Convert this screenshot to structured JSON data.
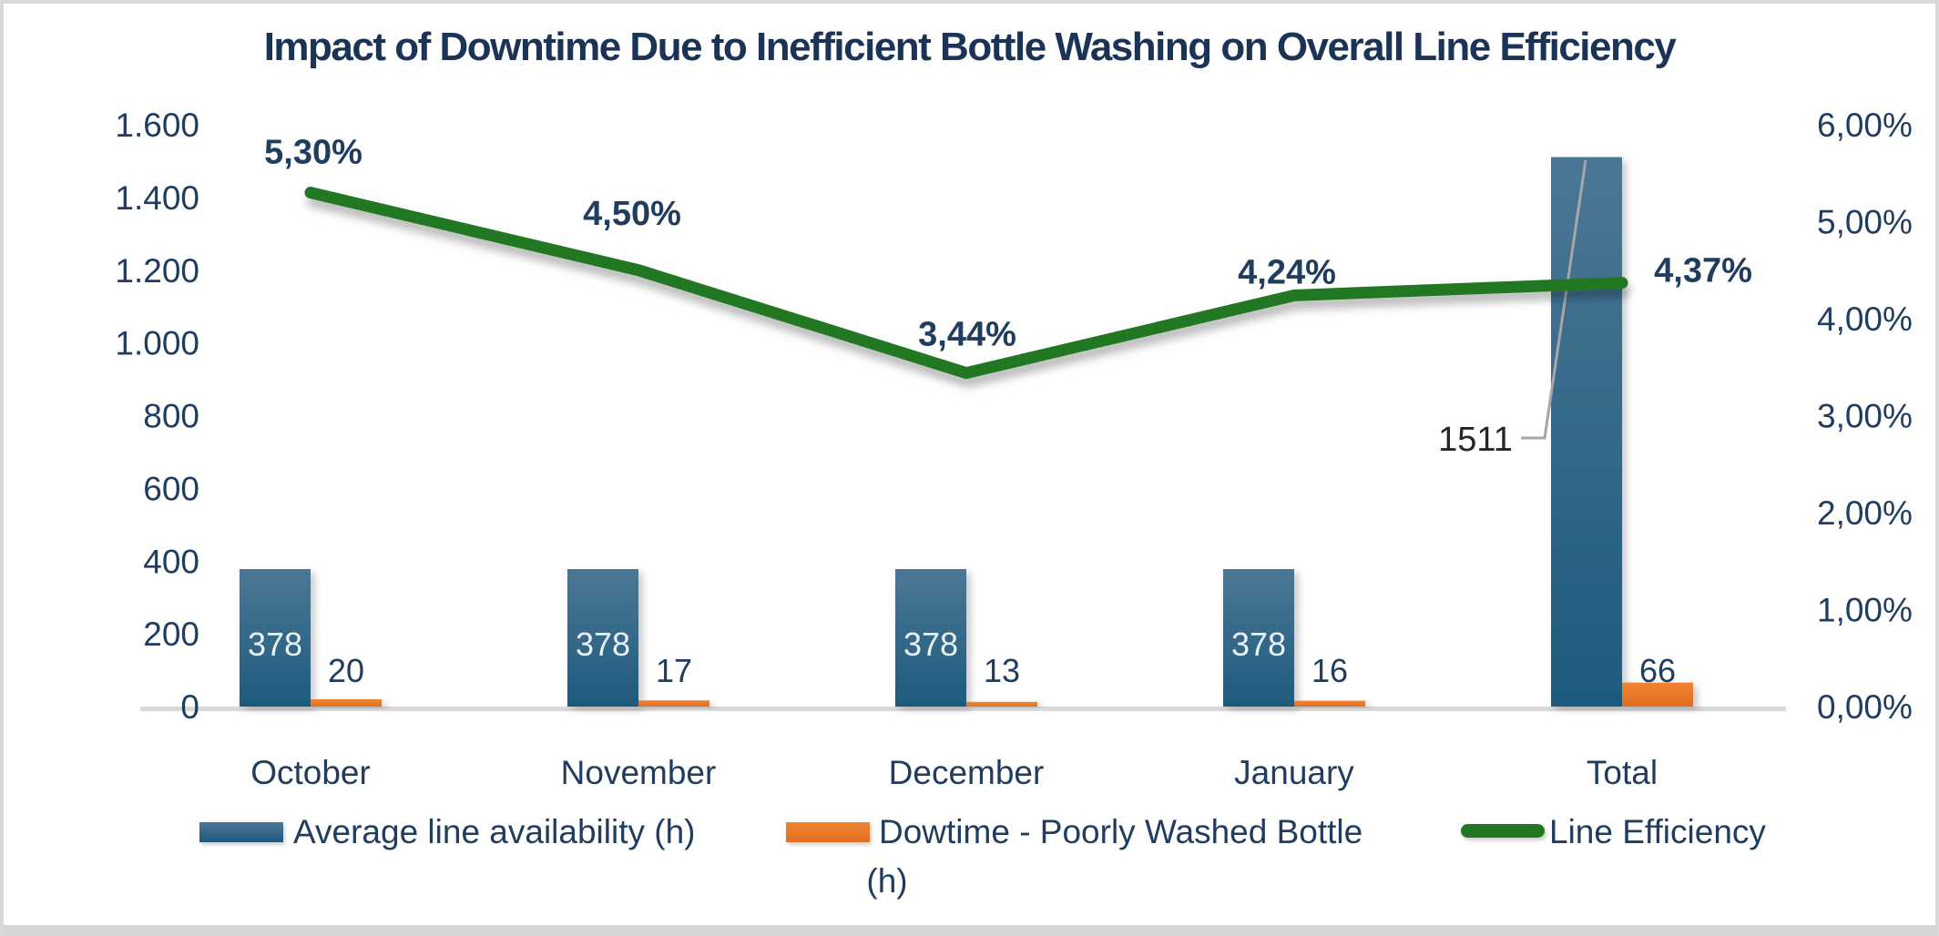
{
  "chart_data": {
    "type": "combo-bar-line",
    "title": "Impact of Downtime Due to Inefficient Bottle Washing on Overall Line Efficiency",
    "categories": [
      "October",
      "November",
      "December",
      "January",
      "Total"
    ],
    "series": [
      {
        "name": "Average line availability (h)",
        "type": "bar",
        "axis": "left",
        "values": [
          378,
          378,
          378,
          378,
          1511
        ],
        "data_labels": [
          "378",
          "378",
          "378",
          "378",
          "1511"
        ],
        "color_top": "#4b7795",
        "color_bottom": "#1e5a7d"
      },
      {
        "name": "Dowtime - Poorly Washed Bottle (h)",
        "type": "bar",
        "axis": "left",
        "values": [
          20,
          17,
          13,
          16,
          66
        ],
        "data_labels": [
          "20",
          "17",
          "13",
          "16",
          "66"
        ],
        "color_top": "#f08534",
        "color_bottom": "#e06f1f"
      },
      {
        "name": "Line Efficiency",
        "type": "line",
        "axis": "right",
        "values": [
          5.3,
          4.5,
          3.44,
          4.24,
          4.37
        ],
        "data_labels": [
          "5,30%",
          "4,50%",
          "3,44%",
          "4,24%",
          "4,37%"
        ],
        "color": "#217821"
      }
    ],
    "left_axis": {
      "min": 0,
      "max": 1600,
      "step": 200,
      "tick_labels": [
        "1.600",
        "1.400",
        "1.200",
        "1.000",
        "800",
        "600",
        "400",
        "200",
        "0"
      ]
    },
    "right_axis": {
      "min": 0,
      "max": 6,
      "step": 1,
      "tick_labels": [
        "6,00%",
        "5,00%",
        "4,00%",
        "3,00%",
        "2,00%",
        "1,00%",
        "0,00%"
      ]
    },
    "gridlines": false,
    "legend_position": "bottom",
    "total_callout_text": "1511"
  },
  "legend": {
    "items": [
      {
        "label": "Average line availability (h)",
        "swatch": "blue-bar"
      },
      {
        "label": "Dowtime - Poorly Washed Bottle",
        "label_line2": "(h)",
        "swatch": "orange-bar"
      },
      {
        "label": "Line Efficiency",
        "swatch": "green-line"
      }
    ]
  },
  "colors": {
    "title_text": "#1b3356",
    "axis_text": "#203d60",
    "bar_blue_top": "#4b7795",
    "bar_blue_bottom": "#1e5a7d",
    "bar_blue_label": "#e9f1f7",
    "bar_orange": "#ee7d30",
    "line_green": "#217821",
    "axis_line": "#d9d9d9",
    "callout_leader": "#a6a6a6",
    "callout_text": "#262626"
  }
}
